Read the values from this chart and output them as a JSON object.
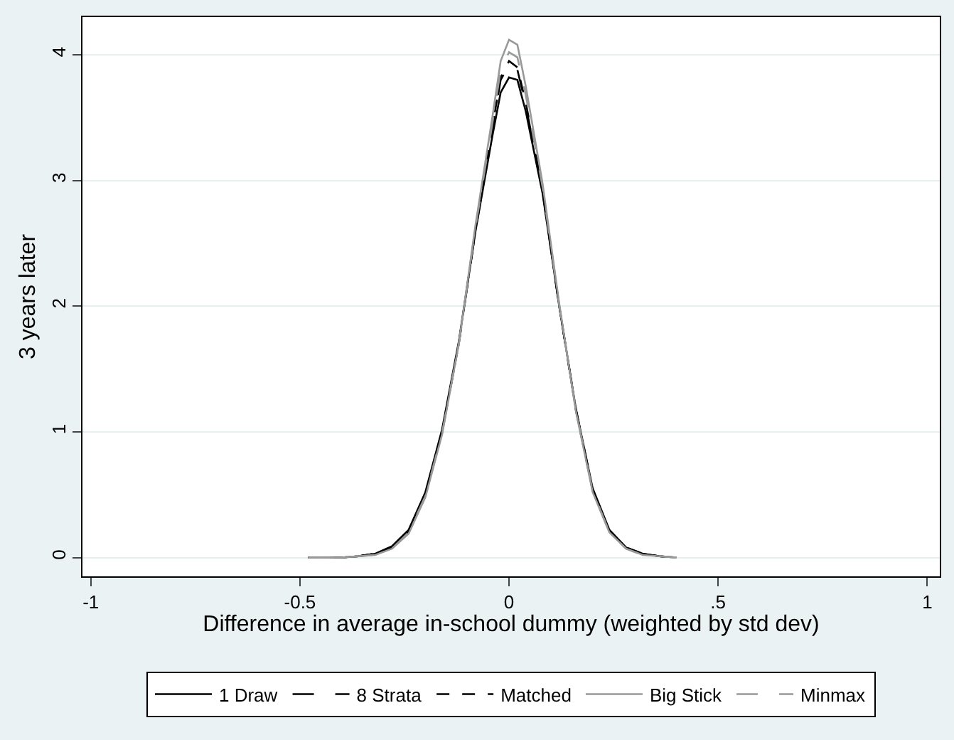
{
  "chart_data": {
    "type": "line",
    "xlabel": "Difference in average in-school dummy (weighted by std dev)",
    "ylabel": "3 years later",
    "x": [
      -0.48,
      -0.4,
      -0.36,
      -0.32,
      -0.28,
      -0.24,
      -0.2,
      -0.16,
      -0.12,
      -0.08,
      -0.04,
      -0.02,
      0,
      0.02,
      0.04,
      0.08,
      0.12,
      0.16,
      0.2,
      0.24,
      0.28,
      0.32,
      0.36,
      0.4
    ],
    "series": [
      {
        "name": "1 Draw",
        "color": "#000000",
        "line_style": "solid",
        "values": [
          0,
          0,
          0.01,
          0.03,
          0.09,
          0.22,
          0.52,
          1.02,
          1.72,
          2.6,
          3.35,
          3.7,
          3.82,
          3.8,
          3.55,
          2.9,
          2.0,
          1.18,
          0.55,
          0.22,
          0.08,
          0.03,
          0.01,
          0
        ]
      },
      {
        "name": "8 Strata",
        "color": "#000000",
        "line_style": "dashed",
        "values": [
          0,
          0,
          0.01,
          0.03,
          0.08,
          0.21,
          0.5,
          1.0,
          1.7,
          2.6,
          3.4,
          3.8,
          3.92,
          3.88,
          3.6,
          2.92,
          2.0,
          1.18,
          0.54,
          0.21,
          0.08,
          0.03,
          0.01,
          0
        ]
      },
      {
        "name": "Matched",
        "color": "#000000",
        "line_style": "dotted",
        "values": [
          0,
          0,
          0.01,
          0.03,
          0.08,
          0.2,
          0.5,
          1.0,
          1.7,
          2.62,
          3.42,
          3.82,
          3.95,
          3.9,
          3.62,
          2.93,
          2.0,
          1.17,
          0.53,
          0.21,
          0.08,
          0.03,
          0.01,
          0
        ]
      },
      {
        "name": "Big Stick",
        "color": "#999999",
        "line_style": "solid",
        "values": [
          0,
          0,
          0.01,
          0.02,
          0.07,
          0.19,
          0.48,
          0.98,
          1.7,
          2.65,
          3.5,
          3.95,
          4.12,
          4.08,
          3.75,
          2.98,
          2.02,
          1.16,
          0.52,
          0.2,
          0.07,
          0.02,
          0.01,
          0
        ]
      },
      {
        "name": "Minmax",
        "color": "#999999",
        "line_style": "dashed",
        "values": [
          0,
          0,
          0.01,
          0.02,
          0.07,
          0.2,
          0.49,
          0.99,
          1.7,
          2.63,
          3.45,
          3.88,
          4.02,
          3.98,
          3.68,
          2.95,
          2.01,
          1.17,
          0.53,
          0.2,
          0.07,
          0.02,
          0.01,
          0
        ]
      }
    ],
    "xlim": [
      -1.02,
      1.03
    ],
    "xticks": [
      -1,
      -0.5,
      {
        "value": 0,
        "label": "0"
      },
      {
        "value": 0.5,
        "label": ".5"
      },
      1
    ],
    "ylim": [
      -0.15,
      4.3
    ],
    "yticks": [
      0,
      1,
      2,
      3,
      4
    ],
    "grid": "y",
    "legend": "bottom",
    "marker": "none"
  }
}
